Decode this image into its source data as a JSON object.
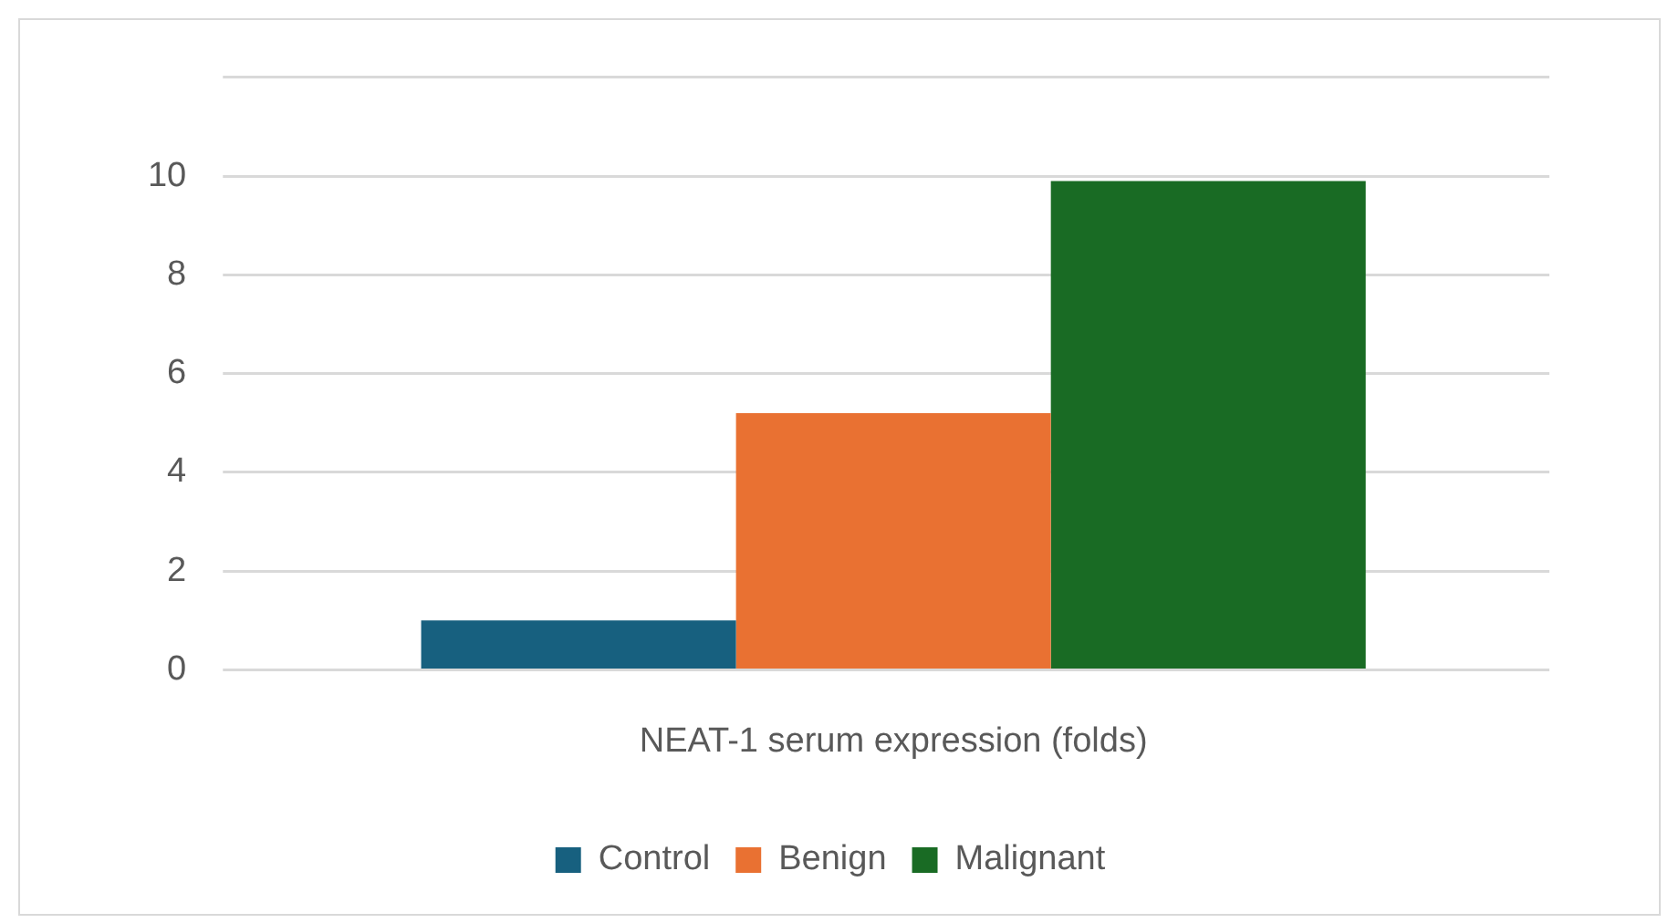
{
  "chart_data": {
    "type": "bar",
    "xlabel": "NEAT-1 serum expression (folds)",
    "categories": [
      null
    ],
    "series": [
      {
        "name": "Control",
        "color": "#17607f",
        "values": [
          1.0
        ]
      },
      {
        "name": "Benign",
        "color": "#e97132",
        "values": [
          5.2
        ]
      },
      {
        "name": "Malignant",
        "color": "#196b24",
        "values": [
          9.9
        ]
      }
    ],
    "ylim": [
      0,
      12
    ],
    "yticks": [
      0,
      2,
      4,
      6,
      8,
      10,
      {
        "value": 12,
        "label": null
      }
    ],
    "grid": "y",
    "legend": "bottom"
  }
}
